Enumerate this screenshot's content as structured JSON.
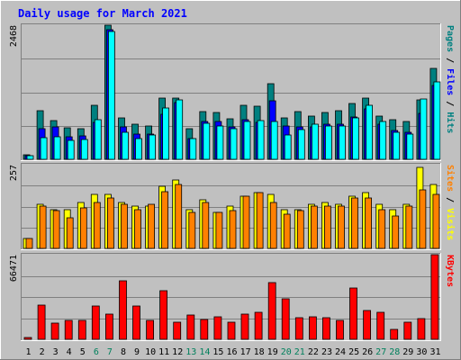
{
  "title": "Daily usage for March 2021",
  "colors": {
    "background": "#c0c0c0",
    "title": "#0000ff",
    "hits": "#00ffff",
    "hits_dark": "#0088aa",
    "files": "#0000ff",
    "pages": "#008080",
    "visits": "#ffff00",
    "sites": "#ff8000",
    "kbytes": "#ff0000",
    "weekend_day": "#00805c",
    "weekday": "#000000"
  },
  "chart_data": [
    {
      "type": "bar",
      "panel": "hits-files-pages",
      "y_max_label": "2468",
      "ylim": [
        0,
        2468
      ],
      "right_labels": [
        {
          "text": "Pages",
          "color": "#008080"
        },
        {
          "text": " / ",
          "color": "#000000"
        },
        {
          "text": "Files",
          "color": "#0000ff"
        },
        {
          "text": " / ",
          "color": "#000000"
        },
        {
          "text": "Hits",
          "color": "#008080"
        }
      ],
      "categories": [
        "1",
        "2",
        "3",
        "4",
        "5",
        "6",
        "7",
        "8",
        "9",
        "10",
        "11",
        "12",
        "13",
        "14",
        "15",
        "16",
        "17",
        "18",
        "19",
        "20",
        "21",
        "22",
        "23",
        "24",
        "25",
        "26",
        "27",
        "28",
        "29",
        "30",
        "31"
      ],
      "series": [
        {
          "name": "Pages",
          "values": [
            90,
            900,
            720,
            580,
            570,
            1000,
            2468,
            760,
            640,
            620,
            1130,
            1130,
            560,
            880,
            860,
            750,
            1000,
            970,
            1390,
            760,
            870,
            800,
            860,
            900,
            1030,
            1130,
            790,
            730,
            700,
            1100,
            1680
          ]
        },
        {
          "name": "Files",
          "values": [
            70,
            560,
            590,
            420,
            430,
            680,
            2380,
            600,
            460,
            460,
            830,
            1040,
            380,
            700,
            700,
            600,
            730,
            680,
            1070,
            620,
            600,
            590,
            640,
            640,
            780,
            930,
            650,
            530,
            500,
            840,
            1350
          ]
        },
        {
          "name": "Hits",
          "values": [
            60,
            390,
            420,
            350,
            360,
            730,
            2360,
            490,
            380,
            440,
            950,
            1100,
            380,
            660,
            610,
            570,
            690,
            710,
            690,
            450,
            550,
            640,
            620,
            620,
            770,
            990,
            700,
            490,
            470,
            1110,
            1420
          ]
        }
      ]
    },
    {
      "type": "bar",
      "panel": "visits-sites",
      "y_max_label": "257",
      "ylim": [
        0,
        257
      ],
      "right_labels": [
        {
          "text": "Sites",
          "color": "#ff8000"
        },
        {
          "text": " / ",
          "color": "#000000"
        },
        {
          "text": "Visits",
          "color": "#ffff00"
        }
      ],
      "categories": [
        "1",
        "2",
        "3",
        "4",
        "5",
        "6",
        "7",
        "8",
        "9",
        "10",
        "11",
        "12",
        "13",
        "14",
        "15",
        "16",
        "17",
        "18",
        "19",
        "20",
        "21",
        "22",
        "23",
        "24",
        "25",
        "26",
        "27",
        "28",
        "29",
        "30",
        "31"
      ],
      "series": [
        {
          "name": "Visits",
          "values": [
            30,
            135,
            120,
            120,
            140,
            165,
            165,
            140,
            130,
            130,
            190,
            210,
            120,
            150,
            110,
            130,
            160,
            170,
            165,
            120,
            120,
            135,
            140,
            135,
            160,
            170,
            135,
            120,
            135,
            250,
            195
          ]
        },
        {
          "name": "Sites",
          "values": [
            30,
            130,
            115,
            95,
            125,
            140,
            155,
            135,
            120,
            135,
            175,
            195,
            110,
            140,
            110,
            115,
            160,
            170,
            140,
            105,
            115,
            130,
            130,
            130,
            155,
            155,
            120,
            100,
            130,
            180,
            165
          ]
        }
      ]
    },
    {
      "type": "bar",
      "panel": "kbytes",
      "y_max_label": "66471",
      "ylim": [
        0,
        66471
      ],
      "right_labels": [
        {
          "text": "KBytes",
          "color": "#ff0000"
        }
      ],
      "categories": [
        "1",
        "2",
        "3",
        "4",
        "5",
        "6",
        "7",
        "8",
        "9",
        "10",
        "11",
        "12",
        "13",
        "14",
        "15",
        "16",
        "17",
        "18",
        "19",
        "20",
        "21",
        "22",
        "23",
        "24",
        "25",
        "26",
        "27",
        "28",
        "29",
        "30",
        "31"
      ],
      "series": [
        {
          "name": "KBytes",
          "values": [
            1500,
            27000,
            12500,
            14500,
            14500,
            26000,
            20000,
            46000,
            26000,
            14500,
            38500,
            13500,
            19000,
            15500,
            18000,
            13500,
            20000,
            21500,
            44500,
            32000,
            17000,
            17500,
            17000,
            15000,
            40000,
            22500,
            21500,
            7500,
            13500,
            16000,
            66471
          ]
        }
      ]
    }
  ],
  "weekend_days": [
    "6",
    "7",
    "13",
    "14",
    "20",
    "21",
    "27",
    "28"
  ]
}
